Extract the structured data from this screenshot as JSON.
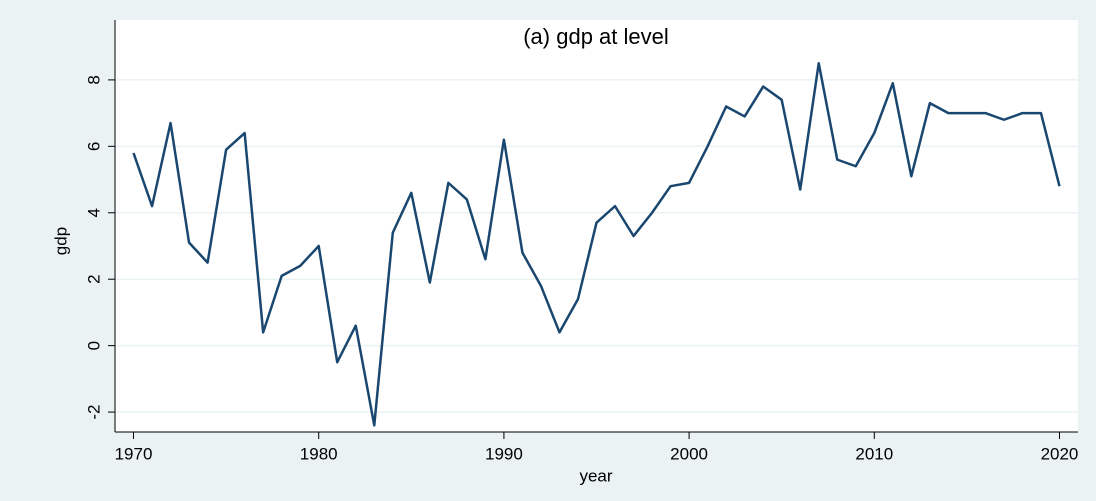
{
  "chart_data": {
    "type": "line",
    "title": "(a) gdp at level",
    "x_label": "year",
    "y_label": "gdp",
    "x": [
      1970,
      1971,
      1972,
      1973,
      1974,
      1975,
      1976,
      1977,
      1978,
      1979,
      1980,
      1981,
      1982,
      1983,
      1984,
      1985,
      1986,
      1987,
      1988,
      1989,
      1990,
      1991,
      1992,
      1993,
      1994,
      1995,
      1996,
      1997,
      1998,
      1999,
      2000,
      2001,
      2002,
      2003,
      2004,
      2005,
      2006,
      2007,
      2008,
      2009,
      2010,
      2011,
      2012,
      2013,
      2014,
      2015,
      2016,
      2017,
      2018,
      2019,
      2020
    ],
    "series": [
      {
        "name": "gdp",
        "color": "#1a476f",
        "values": [
          5.8,
          4.2,
          6.7,
          3.1,
          2.5,
          5.9,
          6.4,
          0.4,
          2.1,
          2.4,
          3.0,
          -0.5,
          0.6,
          -2.4,
          3.4,
          4.6,
          1.9,
          4.9,
          4.4,
          2.6,
          6.2,
          2.8,
          1.8,
          0.4,
          1.4,
          3.7,
          4.2,
          3.3,
          4.0,
          4.8,
          4.9,
          6.0,
          7.2,
          6.9,
          7.8,
          7.4,
          4.7,
          8.5,
          5.6,
          5.4,
          6.4,
          7.9,
          5.1,
          7.3,
          7.0,
          7.0,
          7.0,
          6.8,
          7.0,
          7.0,
          4.8
        ]
      }
    ],
    "xlim": [
      1969,
      2021
    ],
    "xticks": [
      1970,
      1980,
      1990,
      2000,
      2010,
      2020
    ],
    "ylim": [
      -2.6,
      8.9
    ],
    "yticks": [
      -2,
      0,
      2,
      4,
      6,
      8
    ],
    "grid": true
  }
}
